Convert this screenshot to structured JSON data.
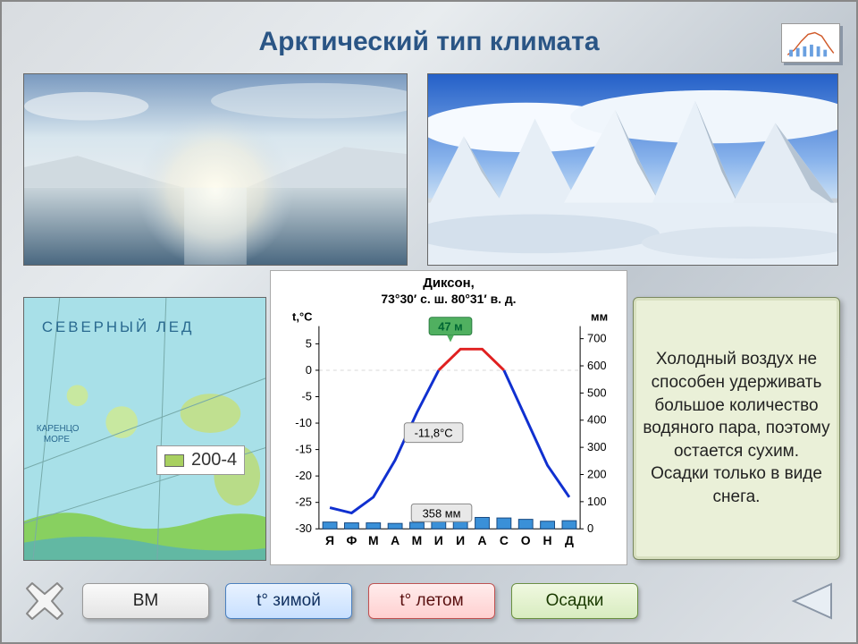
{
  "title": "Арктический тип климата",
  "photo_left": {
    "sky_top": "#8aa8c8",
    "sky_mid": "#cde2ee",
    "sun": "#fffbe8",
    "water": "#5a7890",
    "hill": "#d8e2e8"
  },
  "photo_right": {
    "sky_top": "#2a62c8",
    "sky_low": "#a8c8f0",
    "cloud": "#f5f9ff",
    "snow_peak": "#eef4fa",
    "snow_shadow": "#b8c8d8",
    "fore": "#e4ecf4"
  },
  "map": {
    "sea": "#a8e0e8",
    "land1": "#88d060",
    "land2": "#d0e080",
    "ocean_label": "СЕВЕРНЫЙ  ЛЕД",
    "sea_label1": "КАРЕНЦО",
    "sea_label2": "МОРЕ",
    "legend_text": "200-4"
  },
  "chart": {
    "station": "Диксон,",
    "coords": "73°30′ с. ш. 80°31′ в. д.",
    "y_axis_label": "t,°C",
    "y2_axis_label": "мм",
    "elevation_label": "47 м",
    "mean_temp_label": "-11,8°C",
    "precip_total_label": "358 мм",
    "months": [
      "Я",
      "Ф",
      "М",
      "А",
      "М",
      "И",
      "И",
      "А",
      "С",
      "О",
      "Н",
      "Д"
    ],
    "t_ticks": [
      5,
      0,
      -5,
      -10,
      -15,
      -20,
      -25,
      -30
    ],
    "p_ticks": [
      700,
      600,
      500,
      400,
      300,
      200,
      100,
      0
    ],
    "ylim_t": [
      -30,
      7
    ],
    "ylim_p": [
      0,
      720
    ],
    "temps": [
      -26,
      -27,
      -24,
      -17,
      -8,
      0,
      4,
      4,
      0,
      -9,
      -18,
      -24
    ],
    "precip": [
      25,
      22,
      22,
      20,
      24,
      30,
      38,
      42,
      40,
      35,
      28,
      30
    ],
    "line_cold": "#1030d0",
    "line_warm": "#e02020",
    "bar_fill": "#3a90d8",
    "bar_border": "#1a4a80",
    "grid": "#d8d8d8",
    "text": "#000000",
    "badge_elev_bg": "#50b060",
    "badge_bg": "#e8e8e8",
    "badge_border": "#888"
  },
  "info_text": "Холодный воздух не способен удерживать большое количество водяного пара, поэтому остается сухим. Осадки только в виде снега.",
  "buttons": {
    "vm": "ВМ",
    "winter": "t° зимой",
    "summer": "t°  летом",
    "precip": "Осадки"
  },
  "colors": {
    "title": "#2a5585"
  }
}
